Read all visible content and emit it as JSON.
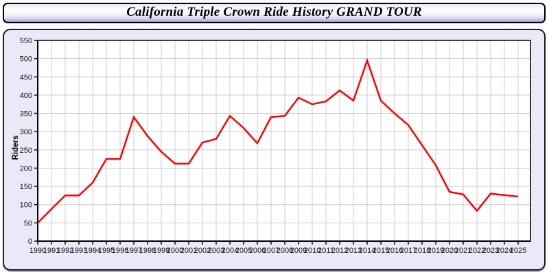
{
  "header": {
    "title": "California Triple Crown Ride History GRAND TOUR"
  },
  "chart_data": {
    "type": "line",
    "title": "California Triple Crown Ride History GRAND TOUR",
    "xlabel": "",
    "ylabel": "Riders",
    "x": [
      1990,
      1991,
      1992,
      1993,
      1994,
      1995,
      1996,
      1997,
      1998,
      1999,
      2000,
      2001,
      2002,
      2003,
      2004,
      2005,
      2006,
      2007,
      2008,
      2009,
      2010,
      2011,
      2012,
      2013,
      2014,
      2015,
      2016,
      2017,
      2018,
      2019,
      2020,
      2021,
      2022,
      2023,
      2024,
      2025
    ],
    "series": [
      {
        "name": "Riders",
        "values": [
          50,
          88,
          125,
          125,
          160,
          225,
          225,
          340,
          288,
          245,
          212,
          212,
          270,
          280,
          343,
          310,
          268,
          340,
          343,
          393,
          375,
          383,
          413,
          385,
          495,
          385,
          350,
          318,
          263,
          208,
          135,
          128,
          83,
          130,
          126,
          122
        ]
      }
    ],
    "ylim": [
      0,
      550
    ],
    "ytick_step": 50,
    "grid": true,
    "legend_position": "none",
    "colors": {
      "line": "#ff0000",
      "plot_bg": "#ffffff",
      "panel_bg": "#e9e9f8",
      "grid": "#cccccc",
      "axis": "#000000",
      "tick_label": "#111111"
    }
  }
}
